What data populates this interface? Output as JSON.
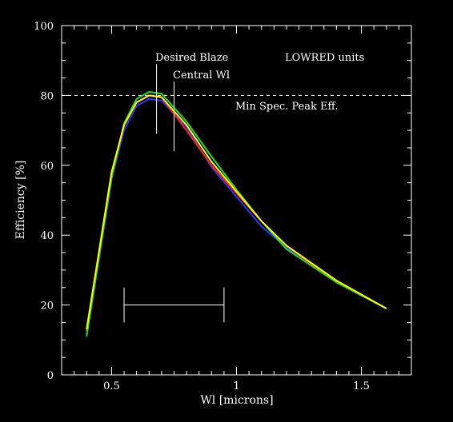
{
  "chart_data": {
    "type": "line",
    "title": "",
    "xlabel": "Wl [microns]",
    "ylabel": "Efficiency [%]",
    "xlim": [
      0.3,
      1.7
    ],
    "ylim": [
      0,
      100
    ],
    "x_ticks": [
      {
        "value": 0.5,
        "label": "0.5"
      },
      {
        "value": 1.0,
        "label": "1"
      },
      {
        "value": 1.5,
        "label": "1.5"
      }
    ],
    "y_ticks": [
      {
        "value": 0,
        "label": "0"
      },
      {
        "value": 20,
        "label": "20"
      },
      {
        "value": 40,
        "label": "40"
      },
      {
        "value": 60,
        "label": "60"
      },
      {
        "value": 80,
        "label": "80"
      },
      {
        "value": 100,
        "label": "100"
      }
    ],
    "series": [
      {
        "color": "#3333ff",
        "x": [
          0.4,
          0.5,
          0.55,
          0.6,
          0.65,
          0.7,
          0.8,
          0.9,
          1.0,
          1.1,
          1.2,
          1.4,
          1.6
        ],
        "y": [
          11.5,
          56,
          70,
          77,
          79,
          78.5,
          71,
          59.5,
          51,
          42.5,
          36.5,
          26.5,
          19
        ]
      },
      {
        "color": "#ff2222",
        "x": [
          0.4,
          0.5,
          0.55,
          0.6,
          0.65,
          0.7,
          0.8,
          0.9,
          1.0,
          1.1,
          1.2,
          1.4,
          1.6
        ],
        "y": [
          12.5,
          57,
          71.5,
          78,
          80,
          79.5,
          70,
          60,
          52,
          44,
          37,
          26.5,
          19
        ]
      },
      {
        "color": "#22dd22",
        "x": [
          0.4,
          0.5,
          0.55,
          0.6,
          0.65,
          0.7,
          0.8,
          0.9,
          1.0,
          1.1,
          1.2,
          1.4,
          1.6
        ],
        "y": [
          11,
          56.5,
          72,
          79,
          81,
          80.5,
          72.5,
          62.5,
          53,
          44,
          36,
          26.5,
          19
        ]
      },
      {
        "color": "#ffff00",
        "x": [
          0.4,
          0.5,
          0.55,
          0.6,
          0.65,
          0.7,
          0.8,
          0.9,
          1.0,
          1.1,
          1.2,
          1.4,
          1.6
        ],
        "y": [
          13,
          58,
          71.5,
          78,
          80,
          79.5,
          71.5,
          61,
          52.5,
          44,
          37,
          27,
          19
        ]
      }
    ],
    "reference_line": {
      "y": 80,
      "style": "dashed",
      "label": "Min Spec. Peak Eff."
    },
    "markers": [
      {
        "x": 0.68,
        "y_from": 69,
        "y_to": 89,
        "label": "Desired Blaze"
      },
      {
        "x": 0.75,
        "y_from": 64,
        "y_to": 84,
        "label": "Central Wl"
      }
    ],
    "range_bar": {
      "x_from": 0.55,
      "x_to": 0.95,
      "y": 20,
      "cap_from": 15,
      "cap_to": 25
    },
    "annotation": "LOWRED units"
  }
}
